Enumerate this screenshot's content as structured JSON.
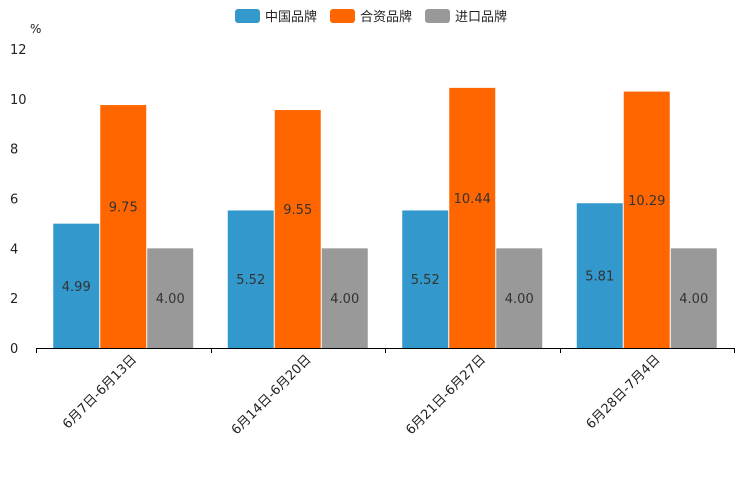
{
  "chart_data": {
    "type": "bar",
    "title": "",
    "xlabel": "",
    "ylabel": "%",
    "ylim": [
      0,
      12
    ],
    "yticks": [
      0,
      2,
      4,
      6,
      8,
      10,
      12
    ],
    "grid": false,
    "legend_position": "top-center",
    "categories": [
      "6月7日-6月13日",
      "6月14日-6月20日",
      "6月21日-6月27日",
      "6月28日-7月4日"
    ],
    "series": [
      {
        "name": "中国品牌",
        "color": "#3399cc",
        "values": [
          4.99,
          5.52,
          5.52,
          5.81
        ],
        "labels": [
          "4.99",
          "5.52",
          "5.52",
          "5.81"
        ]
      },
      {
        "name": "合资品牌",
        "color": "#ff6600",
        "values": [
          9.75,
          9.55,
          10.44,
          10.29
        ],
        "labels": [
          "9.75",
          "9.55",
          "10.44",
          "10.29"
        ]
      },
      {
        "name": "进口品牌",
        "color": "#999999",
        "values": [
          4.0,
          4.0,
          4.0,
          4.0
        ],
        "labels": [
          "4.00",
          "4.00",
          "4.00",
          "4.00"
        ]
      }
    ]
  }
}
